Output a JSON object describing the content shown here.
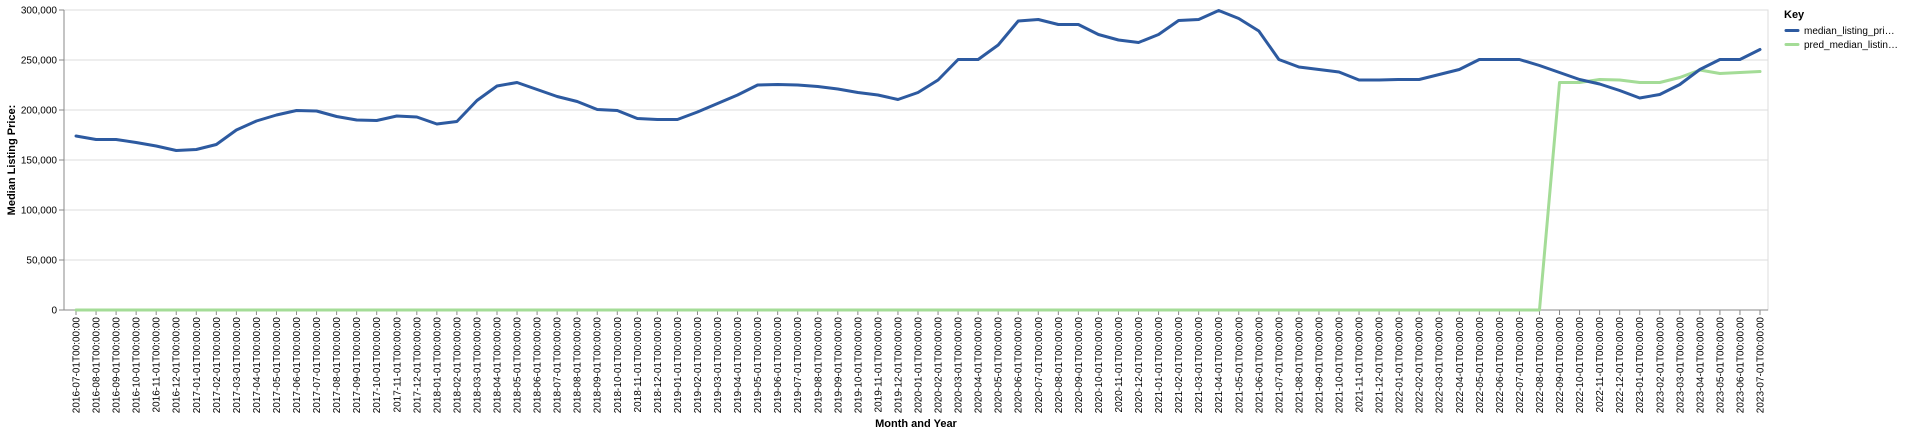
{
  "chart_data": {
    "type": "line",
    "title": "",
    "xlabel": "Month and Year",
    "ylabel": "Median Listing Price:",
    "ylim": [
      0,
      300000
    ],
    "yticks": [
      0,
      50000,
      100000,
      150000,
      200000,
      250000,
      300000
    ],
    "ytick_labels": [
      "0",
      "50,000",
      "100,000",
      "150,000",
      "200,000",
      "250,000",
      "300,000"
    ],
    "grid": true,
    "legend_position": "right",
    "legend_title": "Key",
    "categories": [
      "2016-07-01T00:00:00",
      "2016-08-01T00:00:00",
      "2016-09-01T00:00:00",
      "2016-10-01T00:00:00",
      "2016-11-01T00:00:00",
      "2016-12-01T00:00:00",
      "2017-01-01T00:00:00",
      "2017-02-01T00:00:00",
      "2017-03-01T00:00:00",
      "2017-04-01T00:00:00",
      "2017-05-01T00:00:00",
      "2017-06-01T00:00:00",
      "2017-07-01T00:00:00",
      "2017-08-01T00:00:00",
      "2017-09-01T00:00:00",
      "2017-10-01T00:00:00",
      "2017-11-01T00:00:00",
      "2017-12-01T00:00:00",
      "2018-01-01T00:00:00",
      "2018-02-01T00:00:00",
      "2018-03-01T00:00:00",
      "2018-04-01T00:00:00",
      "2018-05-01T00:00:00",
      "2018-06-01T00:00:00",
      "2018-07-01T00:00:00",
      "2018-08-01T00:00:00",
      "2018-09-01T00:00:00",
      "2018-10-01T00:00:00",
      "2018-11-01T00:00:00",
      "2018-12-01T00:00:00",
      "2019-01-01T00:00:00",
      "2019-02-01T00:00:00",
      "2019-03-01T00:00:00",
      "2019-04-01T00:00:00",
      "2019-05-01T00:00:00",
      "2019-06-01T00:00:00",
      "2019-07-01T00:00:00",
      "2019-08-01T00:00:00",
      "2019-09-01T00:00:00",
      "2019-10-01T00:00:00",
      "2019-11-01T00:00:00",
      "2019-12-01T00:00:00",
      "2020-01-01T00:00:00",
      "2020-02-01T00:00:00",
      "2020-03-01T00:00:00",
      "2020-04-01T00:00:00",
      "2020-05-01T00:00:00",
      "2020-06-01T00:00:00",
      "2020-07-01T00:00:00",
      "2020-08-01T00:00:00",
      "2020-09-01T00:00:00",
      "2020-10-01T00:00:00",
      "2020-11-01T00:00:00",
      "2020-12-01T00:00:00",
      "2021-01-01T00:00:00",
      "2021-02-01T00:00:00",
      "2021-03-01T00:00:00",
      "2021-04-01T00:00:00",
      "2021-05-01T00:00:00",
      "2021-06-01T00:00:00",
      "2021-07-01T00:00:00",
      "2021-08-01T00:00:00",
      "2021-09-01T00:00:00",
      "2021-10-01T00:00:00",
      "2021-11-01T00:00:00",
      "2021-12-01T00:00:00",
      "2022-01-01T00:00:00",
      "2022-02-01T00:00:00",
      "2022-03-01T00:00:00",
      "2022-04-01T00:00:00",
      "2022-05-01T00:00:00",
      "2022-06-01T00:00:00",
      "2022-07-01T00:00:00",
      "2022-08-01T00:00:00",
      "2022-09-01T00:00:00",
      "2022-10-01T00:00:00",
      "2022-11-01T00:00:00",
      "2022-12-01T00:00:00",
      "2023-01-01T00:00:00",
      "2023-02-01T00:00:00",
      "2023-03-01T00:00:00",
      "2023-04-01T00:00:00",
      "2023-05-01T00:00:00",
      "2023-06-01T00:00:00",
      "2023-07-01T00:00:00"
    ],
    "series": [
      {
        "name": "median_listing_price",
        "legend_label": "median_listing_pri…",
        "color": "#2d5aa0",
        "values": [
          174000,
          170500,
          170500,
          167500,
          164000,
          159500,
          160500,
          165500,
          180000,
          189000,
          195000,
          199500,
          199000,
          193500,
          190000,
          189500,
          194000,
          193000,
          186000,
          188500,
          209500,
          224000,
          227500,
          220500,
          213500,
          208500,
          200500,
          199500,
          191500,
          190500,
          190500,
          198000,
          206500,
          215000,
          225000,
          225500,
          225000,
          223500,
          221000,
          217500,
          215000,
          210500,
          217500,
          230000,
          250500,
          250500,
          265000,
          289000,
          290500,
          285500,
          285500,
          275500,
          270000,
          267500,
          275500,
          289500,
          290500,
          299500,
          291500,
          279000,
          250500,
          243000,
          240500,
          238000,
          230000,
          230000,
          230500,
          230500,
          235500,
          240500,
          250500,
          250500,
          250500,
          244500,
          237500,
          230500,
          226000,
          219500,
          212000,
          215500,
          225500,
          240500,
          250500,
          250500,
          260500
        ]
      },
      {
        "name": "pred_median_listing_price",
        "legend_label": "pred_median_listin…",
        "color": "#a4dc97",
        "values": [
          0,
          0,
          0,
          0,
          0,
          0,
          0,
          0,
          0,
          0,
          0,
          0,
          0,
          0,
          0,
          0,
          0,
          0,
          0,
          0,
          0,
          0,
          0,
          0,
          0,
          0,
          0,
          0,
          0,
          0,
          0,
          0,
          0,
          0,
          0,
          0,
          0,
          0,
          0,
          0,
          0,
          0,
          0,
          0,
          0,
          0,
          0,
          0,
          0,
          0,
          0,
          0,
          0,
          0,
          0,
          0,
          0,
          0,
          0,
          0,
          0,
          0,
          0,
          0,
          0,
          0,
          0,
          0,
          0,
          0,
          0,
          0,
          0,
          0,
          227500,
          227500,
          230500,
          230000,
          227500,
          227500,
          232500,
          240000,
          236500,
          237500,
          238500
        ]
      }
    ]
  }
}
